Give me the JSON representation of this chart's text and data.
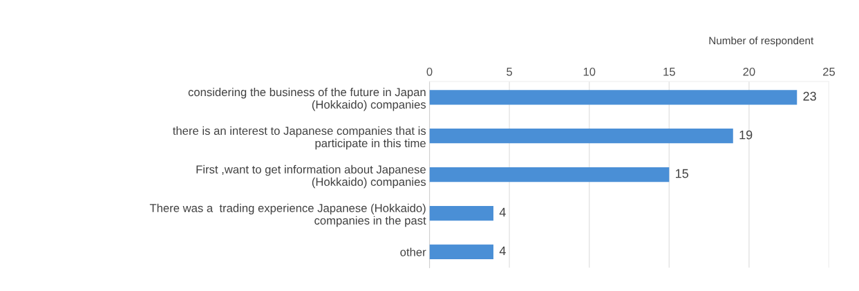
{
  "chart_data": {
    "type": "bar",
    "orientation": "horizontal",
    "xlabel": "Number of respondent",
    "categories": [
      "considering the business of the future in Japan\n(Hokkaido) companies",
      "there is an interest to Japanese companies that is\nparticipate in this time",
      "First ,want to get information about Japanese\n(Hokkaido) companies",
      "There was a  trading experience Japanese (Hokkaido)\ncompanies in the past",
      "other"
    ],
    "values": [
      23,
      19,
      15,
      4,
      4
    ],
    "color": "#4a8fd6",
    "xlim": [
      0,
      25
    ],
    "xticks": [
      0,
      5,
      10,
      15,
      20,
      25
    ],
    "grid": "x",
    "data_labels": true
  }
}
